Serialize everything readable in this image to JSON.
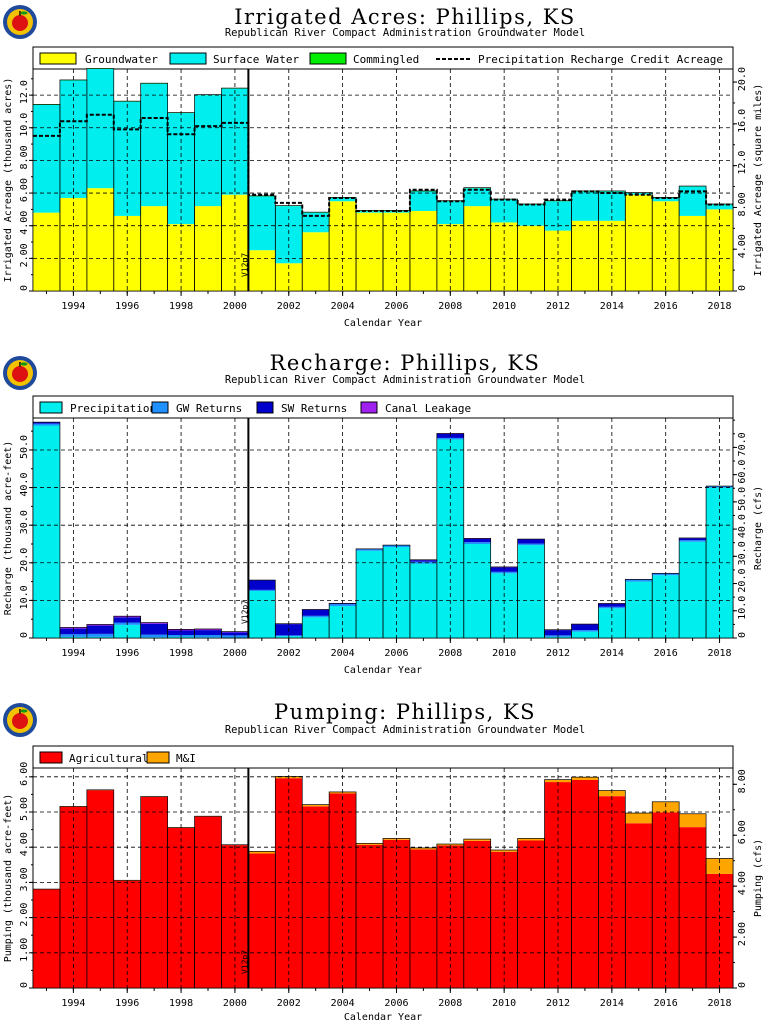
{
  "colors": {
    "groundwater": "#ffff00",
    "surface_water": "#00eeee",
    "commingled": "#00ee00",
    "precipitation": "#00eeee",
    "gw_returns": "#1e90ff",
    "sw_returns": "#0000cd",
    "canal_leakage": "#a020f0",
    "agricultural": "#ff0000",
    "mi": "#ffa500",
    "logo_ring": "#1f4a9c",
    "logo_fill": "#f2c200",
    "logo_apple": "#dd1111"
  },
  "vline_label": "V12p7",
  "chart_data": [
    {
      "type": "bar",
      "title": "Irrigated Acres: Phillips, KS",
      "subtitle": "Republican River Compact Administration Groundwater Model",
      "xlabel": "Calendar Year",
      "ylabel": "Irrigated Acreage (thousand acres)",
      "y2label": "Irrigated Acreage (square miles)",
      "x": [
        1993,
        1994,
        1995,
        1996,
        1997,
        1998,
        1999,
        2000,
        2001,
        2002,
        2003,
        2004,
        2005,
        2006,
        2007,
        2008,
        2009,
        2010,
        2011,
        2012,
        2013,
        2014,
        2015,
        2016,
        2017,
        2018
      ],
      "xticks": [
        "1994",
        "1996",
        "1998",
        "2000",
        "2002",
        "2004",
        "2006",
        "2008",
        "2010",
        "2012",
        "2014",
        "2016",
        "2018"
      ],
      "xlim": [
        1992.5,
        2018.5
      ],
      "ylim": [
        0,
        13.6
      ],
      "yticks": [
        "0",
        "2.00",
        "4.00",
        "6.00",
        "8.00",
        "10.0",
        "12.0"
      ],
      "y2ticks": [
        "0",
        "4.00",
        "8.00",
        "12.0",
        "16.0",
        "20.0"
      ],
      "vline_x": 2000.5,
      "series": [
        {
          "name": "Groundwater",
          "values": [
            4.8,
            5.7,
            6.3,
            4.6,
            5.2,
            4.1,
            5.2,
            5.9,
            2.5,
            1.7,
            3.6,
            5.5,
            4.8,
            4.8,
            4.9,
            4.1,
            5.2,
            4.2,
            4.0,
            3.7,
            4.3,
            4.3,
            5.9,
            5.5,
            4.6,
            5.0
          ]
        },
        {
          "name": "Surface Water",
          "values": [
            6.6,
            7.2,
            7.3,
            7.0,
            7.5,
            6.8,
            6.8,
            6.5,
            3.3,
            3.5,
            1.2,
            0.2,
            0.1,
            0.1,
            1.2,
            1.4,
            1.1,
            1.4,
            1.3,
            1.8,
            1.8,
            1.8,
            0.1,
            0.2,
            1.8,
            0.3
          ]
        },
        {
          "name": "Commingled",
          "values": [
            0.03,
            0.03,
            0.03,
            0.03,
            0.03,
            0.03,
            0.03,
            0.03,
            0.03,
            0.03,
            0.03,
            0.03,
            0.03,
            0.03,
            0.03,
            0.03,
            0.03,
            0.03,
            0.03,
            0.03,
            0.03,
            0.03,
            0.03,
            0.03,
            0.03,
            0.03
          ]
        },
        {
          "name": "Precipitation Recharge Credit Acreage",
          "type": "line",
          "values": [
            9.5,
            10.4,
            10.8,
            9.9,
            10.6,
            9.6,
            10.1,
            10.3,
            5.9,
            5.4,
            4.6,
            5.7,
            4.9,
            4.9,
            6.2,
            5.5,
            6.2,
            5.6,
            5.3,
            5.6,
            6.1,
            6.0,
            5.9,
            5.7,
            6.1,
            5.3
          ]
        }
      ]
    },
    {
      "type": "bar",
      "title": "Recharge: Phillips, KS",
      "subtitle": "Republican River Compact Administration Groundwater Model",
      "xlabel": "Calendar Year",
      "ylabel": "Recharge (thousand acre-feet)",
      "y2label": "Recharge (cfs)",
      "x": [
        1993,
        1994,
        1995,
        1996,
        1997,
        1998,
        1999,
        2000,
        2001,
        2002,
        2003,
        2004,
        2005,
        2006,
        2007,
        2008,
        2009,
        2010,
        2011,
        2012,
        2013,
        2014,
        2015,
        2016,
        2017,
        2018
      ],
      "xticks": [
        "1994",
        "1996",
        "1998",
        "2000",
        "2002",
        "2004",
        "2006",
        "2008",
        "2010",
        "2012",
        "2014",
        "2016",
        "2018"
      ],
      "xlim": [
        1992.5,
        2018.5
      ],
      "ylim": [
        0,
        58.5
      ],
      "yticks": [
        "0",
        "10.0",
        "20.0",
        "30.0",
        "40.0",
        "50.0"
      ],
      "y2ticks": [
        "0",
        "10.0",
        "20.0",
        "30.0",
        "40.0",
        "50.0",
        "60.0",
        "70.0"
      ],
      "vline_x": 2000.5,
      "series": [
        {
          "name": "Precipitation",
          "values": [
            56.5,
            0.3,
            0.3,
            3.5,
            0.2,
            0.3,
            0.2,
            0.1,
            12.5,
            0.5,
            5.5,
            8.5,
            23.2,
            24.2,
            19.8,
            52.8,
            25.0,
            17.2,
            24.7,
            0.3,
            1.7,
            7.9,
            15.0,
            16.7,
            25.6,
            40.0
          ]
        },
        {
          "name": "GW Returns",
          "values": [
            0.5,
            0.7,
            0.8,
            0.6,
            0.7,
            0.5,
            0.6,
            0.6,
            0.3,
            0.2,
            0.4,
            0.5,
            0.4,
            0.4,
            0.5,
            0.4,
            0.5,
            0.4,
            0.4,
            0.4,
            0.4,
            0.4,
            0.5,
            0.4,
            0.4,
            0.3
          ]
        },
        {
          "name": "SW Returns",
          "values": [
            0.3,
            1.5,
            2.2,
            1.4,
            2.9,
            1.2,
            1.3,
            0.8,
            2.5,
            3.0,
            1.6,
            0.2,
            0.1,
            0.1,
            0.4,
            1.1,
            0.9,
            1.2,
            1.1,
            1.4,
            1.5,
            0.8,
            0.1,
            0.1,
            0.5,
            0.1
          ]
        },
        {
          "name": "Canal Leakage",
          "values": [
            0.1,
            0.3,
            0.3,
            0.3,
            0.3,
            0.3,
            0.3,
            0.2,
            0.1,
            0.1,
            0.1,
            0.0,
            0.0,
            0.0,
            0.1,
            0.1,
            0.1,
            0.1,
            0.1,
            0.1,
            0.1,
            0.1,
            0.0,
            0.0,
            0.1,
            0.0
          ]
        }
      ]
    },
    {
      "type": "bar",
      "title": "Pumping: Phillips, KS",
      "subtitle": "Republican River Compact Administration Groundwater Model",
      "xlabel": "Calendar Year",
      "ylabel": "Pumping (thousand acre-feet)",
      "y2label": "Pumping (cfs)",
      "x": [
        1993,
        1994,
        1995,
        1996,
        1997,
        1998,
        1999,
        2000,
        2001,
        2002,
        2003,
        2004,
        2005,
        2006,
        2007,
        2008,
        2009,
        2010,
        2011,
        2012,
        2013,
        2014,
        2015,
        2016,
        2017,
        2018
      ],
      "xticks": [
        "1994",
        "1996",
        "1998",
        "2000",
        "2002",
        "2004",
        "2006",
        "2008",
        "2010",
        "2012",
        "2014",
        "2016",
        "2018"
      ],
      "xlim": [
        1992.5,
        2018.5
      ],
      "ylim": [
        0,
        6.25
      ],
      "yticks": [
        "0",
        "1.00",
        "2.00",
        "3.00",
        "4.00",
        "5.00",
        "6.00"
      ],
      "y2ticks": [
        "0",
        "2.00",
        "4.00",
        "6.00",
        "8.00"
      ],
      "vline_x": 2000.5,
      "series": [
        {
          "name": "Agricultural",
          "values": [
            2.8,
            5.15,
            5.62,
            3.05,
            5.43,
            4.55,
            4.87,
            4.06,
            3.82,
            5.96,
            5.16,
            5.53,
            4.07,
            4.21,
            3.94,
            4.05,
            4.18,
            3.87,
            4.19,
            5.85,
            5.91,
            5.45,
            4.68,
            4.99,
            4.57,
            3.24
          ]
        },
        {
          "name": "M&I",
          "values": [
            0.01,
            0.01,
            0.01,
            0.01,
            0.01,
            0.01,
            0.01,
            0.01,
            0.06,
            0.05,
            0.05,
            0.04,
            0.04,
            0.04,
            0.04,
            0.04,
            0.05,
            0.05,
            0.06,
            0.07,
            0.08,
            0.16,
            0.29,
            0.3,
            0.38,
            0.44
          ]
        }
      ]
    }
  ]
}
